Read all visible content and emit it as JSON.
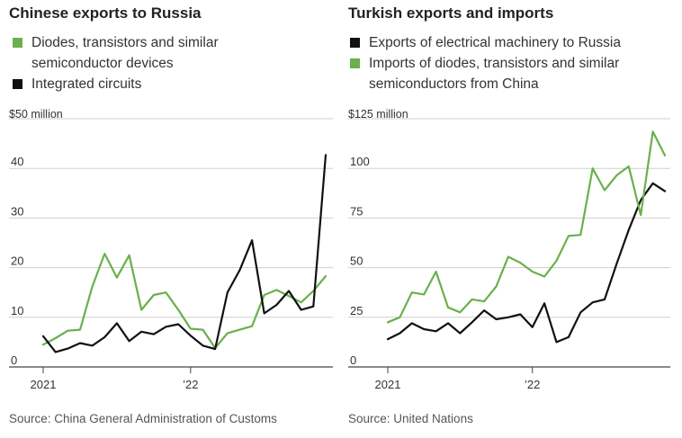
{
  "colors": {
    "green": "#6ab04c",
    "black": "#111111",
    "grid": "#cfcfcf",
    "axis": "#555555"
  },
  "chart_data": [
    {
      "type": "line",
      "title": "Chinese exports to Russia",
      "unit_label": "$50 million",
      "ylim": [
        0,
        50
      ],
      "y_ticks": [
        {
          "value": 0,
          "label": "0"
        },
        {
          "value": 10,
          "label": "10"
        },
        {
          "value": 20,
          "label": "20"
        },
        {
          "value": 30,
          "label": "30"
        },
        {
          "value": 40,
          "label": "40"
        },
        {
          "value": 50,
          "label": "$50 million"
        }
      ],
      "x_ticks": [
        {
          "index": 0,
          "label": "2021"
        },
        {
          "index": 12,
          "label": "’22"
        }
      ],
      "series": [
        {
          "name": "Diodes, transistors and similar semiconductor devices",
          "legend_lines": [
            "Diodes, transistors and similar",
            "semiconductor devices"
          ],
          "color": "green",
          "values": [
            4.5,
            5.8,
            7.3,
            7.5,
            16.2,
            22.8,
            18.0,
            22.5,
            11.5,
            14.5,
            15.0,
            11.5,
            7.7,
            7.5,
            3.8,
            6.8,
            7.5,
            8.2,
            14.5,
            15.5,
            14.3,
            13.0,
            15.3,
            18.3
          ]
        },
        {
          "name": "Integrated circuits",
          "legend_lines": [
            "Integrated circuits"
          ],
          "color": "black",
          "values": [
            6.2,
            3.0,
            3.7,
            4.8,
            4.3,
            6.0,
            8.8,
            5.2,
            7.1,
            6.6,
            8.1,
            8.6,
            6.3,
            4.3,
            3.6,
            15.0,
            19.5,
            25.5,
            10.8,
            12.5,
            15.3,
            11.5,
            12.2,
            42.7
          ]
        }
      ],
      "source": "Source: China General Administration of Customs"
    },
    {
      "type": "line",
      "title": "Turkish exports and imports",
      "unit_label": "$125 million",
      "ylim": [
        0,
        125
      ],
      "y_ticks": [
        {
          "value": 0,
          "label": "0"
        },
        {
          "value": 25,
          "label": "25"
        },
        {
          "value": 50,
          "label": "50"
        },
        {
          "value": 75,
          "label": "75"
        },
        {
          "value": 100,
          "label": "100"
        },
        {
          "value": 125,
          "label": "$125 million"
        }
      ],
      "x_ticks": [
        {
          "index": 0,
          "label": "2021"
        },
        {
          "index": 12,
          "label": "’22"
        }
      ],
      "series": [
        {
          "name": "Exports of electrical machinery to Russia",
          "legend_lines": [
            "Exports of electrical machinery to Russia"
          ],
          "color": "black",
          "values": [
            14.0,
            17.0,
            22.0,
            19.0,
            18.0,
            22.0,
            17.0,
            22.5,
            28.5,
            24.0,
            25.0,
            26.5,
            20.0,
            32.0,
            12.5,
            15.0,
            27.5,
            32.5,
            34.0,
            52.0,
            69.0,
            84.0,
            92.5,
            88.5
          ]
        },
        {
          "name": "Imports of diodes, transistors and similar semiconductors from China",
          "legend_lines": [
            "Imports of diodes, transistors and similar",
            "semiconductors from China"
          ],
          "color": "green",
          "values": [
            22.5,
            25.0,
            37.5,
            36.5,
            48.0,
            30.0,
            27.5,
            34.0,
            33.0,
            40.5,
            55.5,
            52.5,
            48.0,
            45.5,
            53.5,
            66.0,
            66.5,
            100.0,
            89.0,
            96.5,
            101.0,
            76.5,
            118.5,
            106.5
          ]
        }
      ],
      "source": "Source: United Nations"
    }
  ]
}
